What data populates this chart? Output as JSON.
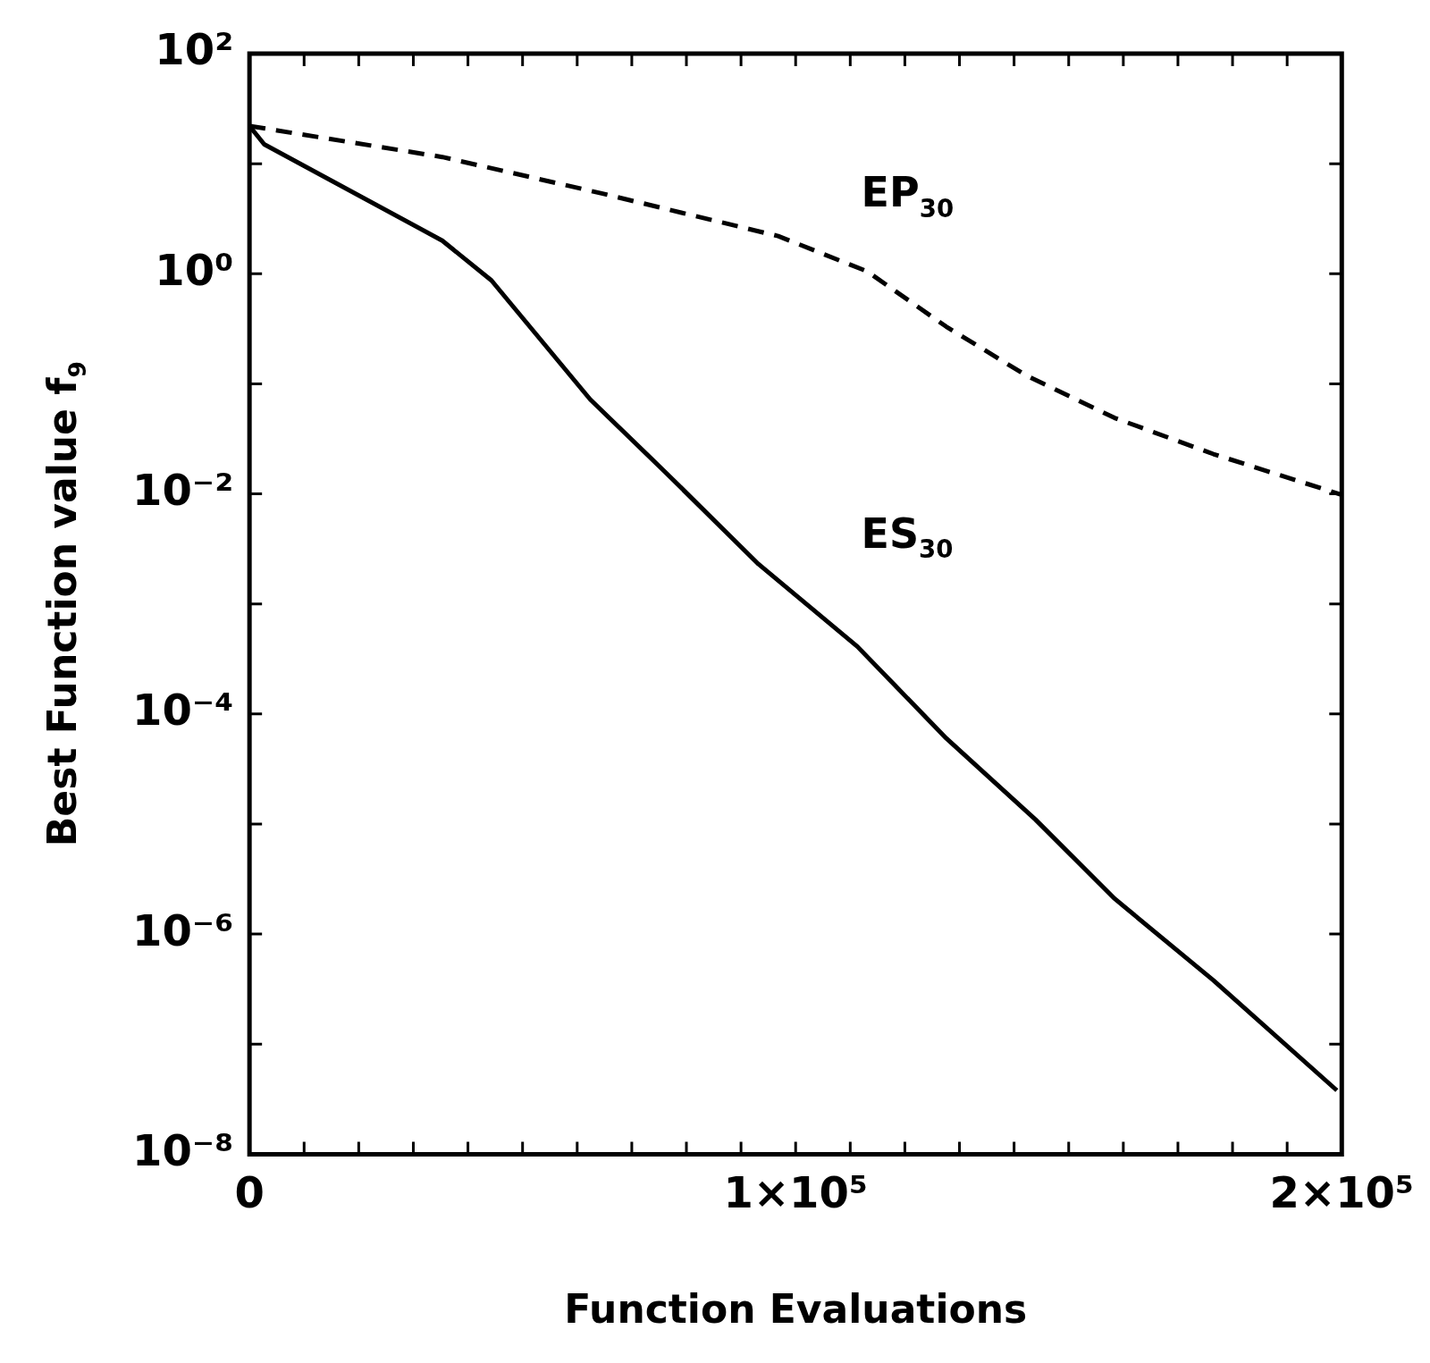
{
  "chart_data": {
    "type": "line",
    "xlabel": "Function Evaluations",
    "ylabel": "Best Function value f$_{9}$",
    "log": "y",
    "grid": false,
    "legend": false,
    "marker": "none",
    "xlim": [
      0,
      200000
    ],
    "ylim": [
      1e-08,
      100
    ],
    "xticks": [
      {
        "value": 0,
        "label": "0"
      },
      {
        "value": 10000,
        "label": null
      },
      {
        "value": 20000,
        "label": null
      },
      {
        "value": 30000,
        "label": null
      },
      {
        "value": 40000,
        "label": null
      },
      {
        "value": 50000,
        "label": null
      },
      {
        "value": 60000,
        "label": null
      },
      {
        "value": 70000,
        "label": null
      },
      {
        "value": 80000,
        "label": null
      },
      {
        "value": 90000,
        "label": null
      },
      {
        "value": 100000,
        "label": "1×10⁵"
      },
      {
        "value": 110000,
        "label": null
      },
      {
        "value": 120000,
        "label": null
      },
      {
        "value": 130000,
        "label": null
      },
      {
        "value": 140000,
        "label": null
      },
      {
        "value": 150000,
        "label": null
      },
      {
        "value": 160000,
        "label": null
      },
      {
        "value": 170000,
        "label": null
      },
      {
        "value": 180000,
        "label": null
      },
      {
        "value": 190000,
        "label": null
      },
      {
        "value": 200000,
        "label": "2×10⁵"
      }
    ],
    "yticks": [
      {
        "value": 1e-08,
        "label": "10⁻⁸"
      },
      {
        "value": 1e-07,
        "label": null
      },
      {
        "value": 1e-06,
        "label": "10⁻⁶"
      },
      {
        "value": 1e-05,
        "label": null
      },
      {
        "value": 0.0001,
        "label": "10⁻⁴"
      },
      {
        "value": 0.001,
        "label": null
      },
      {
        "value": 0.01,
        "label": "10⁻²"
      },
      {
        "value": 0.1,
        "label": null
      },
      {
        "value": 1,
        "label": "10⁰"
      },
      {
        "value": 10,
        "label": null
      },
      {
        "value": 100,
        "label": "10²"
      }
    ],
    "series": [
      {
        "name": "EP$_{30}$",
        "color": "#000000",
        "line_style": "dashed",
        "x": [
          0,
          35300,
          64300,
          96800,
          113100,
          127600,
          142100,
          158400,
          176500,
          200000
        ],
        "values": [
          22,
          11.5,
          5.4,
          2.2,
          1.05,
          0.33,
          0.12,
          0.049,
          0.023,
          0.0098
        ]
      },
      {
        "name": "ES$_{30}$",
        "color": "#000000",
        "line_style": "solid",
        "x": [
          0,
          2700,
          35300,
          44300,
          62400,
          76000,
          93200,
          111300,
          127600,
          143900,
          158400,
          176500,
          199100
        ],
        "values": [
          22,
          15,
          2.0,
          0.87,
          0.072,
          0.016,
          0.0023,
          0.00041,
          6e-05,
          1.1e-05,
          2.1e-06,
          3.8e-07,
          3.8e-08
        ]
      }
    ]
  }
}
